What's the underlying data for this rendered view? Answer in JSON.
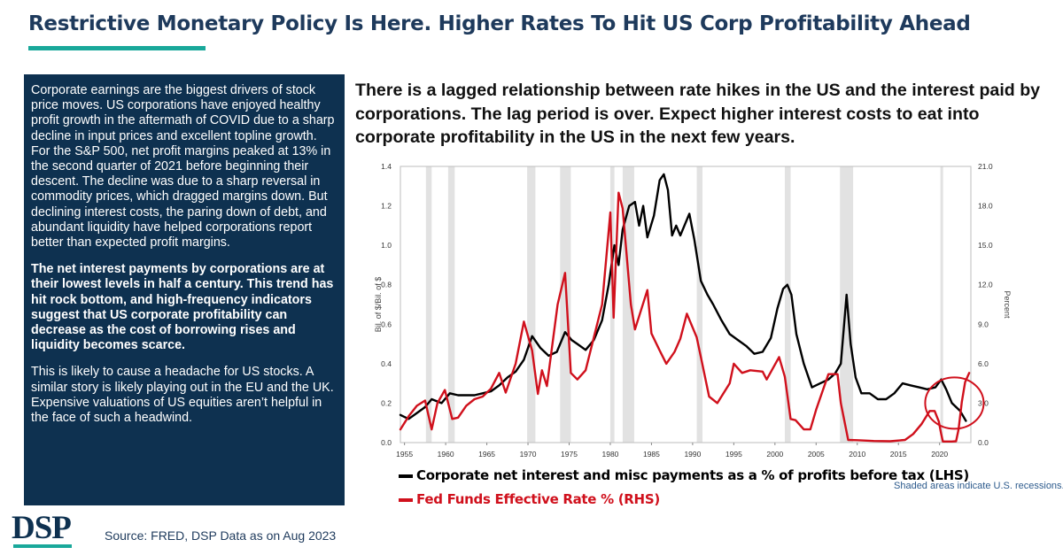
{
  "slide": {
    "title": "Restrictive Monetary Policy Is Here. Higher Rates To Hit US Corp Profitability Ahead",
    "commentary": [
      {
        "text": "Corporate earnings are the biggest drivers of stock price moves. US corporations have enjoyed healthy profit growth in the aftermath of COVID due to a sharp decline in input prices and excellent topline growth. For the S&P 500, net profit margins peaked at 13% in the second quarter of 2021 before beginning their descent. The decline was due to a sharp reversal in commodity prices, which dragged margins down. But declining interest costs, the paring down of debt, and abundant liquidity have helped corporations report better than expected profit margins.",
        "bold": false
      },
      {
        "text": "The net interest payments by corporations are at their lowest levels in half a century. This trend has hit rock bottom, and high-frequency indicators suggest that US corporate profitability can decrease as the cost of borrowing rises and liquidity becomes scarce.",
        "bold": true
      },
      {
        "text": "This is likely to cause a headache for US stocks. A similar story is likely playing out in the EU and the UK. Expensive valuations of US equities aren’t helpful in the face of such a headwind.",
        "bold": false
      }
    ],
    "headline": "There is a lagged relationship between rate hikes in the US and the interest paid by corporations. The lag period is over. Expect higher interest costs to eat into corporate profitability in the US in the next few years.",
    "logo": "DSP",
    "source": "Source: FRED, DSP Data as on Aug 2023",
    "accent_color": "#19a89a",
    "navy_color": "#0e3150"
  },
  "chart_data": {
    "type": "line",
    "xlim": [
      1954.5,
      2023.8
    ],
    "x_ticks": [
      "1955",
      "1960",
      "1965",
      "1970",
      "1975",
      "1980",
      "1985",
      "1990",
      "1995",
      "2000",
      "2005",
      "2010",
      "2015",
      "2020"
    ],
    "left_axis": {
      "label": "Bil. of $/Bil. of $",
      "range": [
        0,
        1.4
      ],
      "ticks": [
        "0.0",
        "0.2",
        "0.4",
        "0.6",
        "0.8",
        "1.0",
        "1.2",
        "1.4"
      ]
    },
    "right_axis": {
      "label": "Percent",
      "range": [
        0,
        21
      ],
      "ticks": [
        "0.0",
        "3.0",
        "6.0",
        "9.0",
        "12.0",
        "15.0",
        "18.0",
        "21.0"
      ]
    },
    "recessions": [
      [
        1957.6,
        1958.3
      ],
      [
        1960.3,
        1961.1
      ],
      [
        1969.9,
        1970.9
      ],
      [
        1973.9,
        1975.2
      ],
      [
        1980.0,
        1980.5
      ],
      [
        1981.5,
        1982.9
      ],
      [
        1990.5,
        1991.2
      ],
      [
        2001.2,
        2001.9
      ],
      [
        2007.9,
        2009.5
      ],
      [
        2020.1,
        2020.4
      ]
    ],
    "recession_note": "Shaded areas indicate U.S. recessions.",
    "highlight_circle": {
      "center": [
        2021.8,
        3.0
      ],
      "color": "#d0101c"
    },
    "series": [
      {
        "name": "Corporate net interest and misc payments as a % of  profits before tax (LHS)",
        "axis": "left",
        "color": "#000000",
        "points": [
          [
            1954.5,
            0.14
          ],
          [
            1955.5,
            0.12
          ],
          [
            1956.5,
            0.15
          ],
          [
            1957.5,
            0.18
          ],
          [
            1958.3,
            0.22
          ],
          [
            1959.5,
            0.2
          ],
          [
            1960.5,
            0.25
          ],
          [
            1961.5,
            0.24
          ],
          [
            1962.5,
            0.24
          ],
          [
            1963.5,
            0.24
          ],
          [
            1964.5,
            0.25
          ],
          [
            1965.5,
            0.26
          ],
          [
            1966.5,
            0.29
          ],
          [
            1967.5,
            0.33
          ],
          [
            1968.5,
            0.36
          ],
          [
            1969.5,
            0.42
          ],
          [
            1970.5,
            0.54
          ],
          [
            1971.5,
            0.48
          ],
          [
            1972.5,
            0.44
          ],
          [
            1973.5,
            0.46
          ],
          [
            1974.5,
            0.56
          ],
          [
            1975.3,
            0.52
          ],
          [
            1976.0,
            0.5
          ],
          [
            1977.0,
            0.47
          ],
          [
            1978.0,
            0.52
          ],
          [
            1979.0,
            0.62
          ],
          [
            1979.8,
            0.8
          ],
          [
            1980.5,
            1.0
          ],
          [
            1981.0,
            0.9
          ],
          [
            1981.5,
            1.08
          ],
          [
            1982.3,
            1.2
          ],
          [
            1983.0,
            1.22
          ],
          [
            1983.5,
            1.1
          ],
          [
            1984.0,
            1.2
          ],
          [
            1984.5,
            1.04
          ],
          [
            1985.3,
            1.15
          ],
          [
            1986.0,
            1.33
          ],
          [
            1986.5,
            1.36
          ],
          [
            1987.0,
            1.28
          ],
          [
            1987.5,
            1.05
          ],
          [
            1988.0,
            1.1
          ],
          [
            1988.5,
            1.05
          ],
          [
            1989.0,
            1.1
          ],
          [
            1989.6,
            1.16
          ],
          [
            1990.2,
            1.03
          ],
          [
            1991.0,
            0.82
          ],
          [
            1991.8,
            0.75
          ],
          [
            1992.5,
            0.7
          ],
          [
            1993.5,
            0.62
          ],
          [
            1994.5,
            0.55
          ],
          [
            1995.5,
            0.52
          ],
          [
            1996.5,
            0.49
          ],
          [
            1997.5,
            0.45
          ],
          [
            1998.5,
            0.46
          ],
          [
            1999.5,
            0.53
          ],
          [
            2000.3,
            0.68
          ],
          [
            2001.0,
            0.78
          ],
          [
            2001.5,
            0.8
          ],
          [
            2002.0,
            0.75
          ],
          [
            2002.6,
            0.55
          ],
          [
            2003.5,
            0.4
          ],
          [
            2004.5,
            0.28
          ],
          [
            2005.5,
            0.3
          ],
          [
            2006.5,
            0.32
          ],
          [
            2007.3,
            0.35
          ],
          [
            2008.0,
            0.4
          ],
          [
            2008.7,
            0.75
          ],
          [
            2009.2,
            0.5
          ],
          [
            2009.8,
            0.33
          ],
          [
            2010.5,
            0.25
          ],
          [
            2011.5,
            0.25
          ],
          [
            2012.5,
            0.22
          ],
          [
            2013.5,
            0.22
          ],
          [
            2014.5,
            0.25
          ],
          [
            2015.5,
            0.3
          ],
          [
            2016.5,
            0.29
          ],
          [
            2017.5,
            0.28
          ],
          [
            2018.5,
            0.27
          ],
          [
            2019.5,
            0.28
          ],
          [
            2020.2,
            0.32
          ],
          [
            2020.8,
            0.27
          ],
          [
            2021.5,
            0.2
          ],
          [
            2022.5,
            0.16
          ],
          [
            2023.2,
            0.11
          ]
        ]
      },
      {
        "name": "Fed Funds Effective Rate % (RHS)",
        "axis": "right",
        "color": "#d0101c",
        "points": [
          [
            1954.5,
            1.0
          ],
          [
            1955.5,
            2.0
          ],
          [
            1956.5,
            2.8
          ],
          [
            1957.5,
            3.2
          ],
          [
            1958.3,
            1.0
          ],
          [
            1959.0,
            3.0
          ],
          [
            1959.9,
            4.0
          ],
          [
            1960.8,
            1.8
          ],
          [
            1961.5,
            1.9
          ],
          [
            1962.5,
            2.8
          ],
          [
            1963.5,
            3.3
          ],
          [
            1964.5,
            3.5
          ],
          [
            1965.5,
            4.1
          ],
          [
            1966.5,
            5.3
          ],
          [
            1967.3,
            3.8
          ],
          [
            1968.5,
            6.0
          ],
          [
            1969.5,
            9.2
          ],
          [
            1970.5,
            7.0
          ],
          [
            1971.2,
            3.7
          ],
          [
            1971.7,
            5.5
          ],
          [
            1972.3,
            4.3
          ],
          [
            1973.6,
            10.5
          ],
          [
            1974.5,
            12.9
          ],
          [
            1975.2,
            5.3
          ],
          [
            1976.0,
            4.8
          ],
          [
            1977.0,
            5.5
          ],
          [
            1978.0,
            8.0
          ],
          [
            1979.0,
            10.5
          ],
          [
            1980.0,
            17.5
          ],
          [
            1980.4,
            9.5
          ],
          [
            1981.0,
            19.0
          ],
          [
            1981.5,
            17.8
          ],
          [
            1982.5,
            10.5
          ],
          [
            1983.0,
            8.6
          ],
          [
            1984.5,
            11.6
          ],
          [
            1985.0,
            8.3
          ],
          [
            1986.0,
            7.0
          ],
          [
            1986.8,
            6.0
          ],
          [
            1987.8,
            6.9
          ],
          [
            1988.5,
            7.9
          ],
          [
            1989.3,
            9.8
          ],
          [
            1990.5,
            8.0
          ],
          [
            1991.0,
            6.5
          ],
          [
            1992.0,
            3.5
          ],
          [
            1993.0,
            3.0
          ],
          [
            1994.5,
            4.5
          ],
          [
            1995.0,
            6.0
          ],
          [
            1996.0,
            5.3
          ],
          [
            1997.0,
            5.5
          ],
          [
            1998.5,
            5.4
          ],
          [
            1999.0,
            4.8
          ],
          [
            2000.5,
            6.5
          ],
          [
            2001.2,
            5.0
          ],
          [
            2001.9,
            1.8
          ],
          [
            2002.5,
            1.7
          ],
          [
            2003.5,
            1.0
          ],
          [
            2004.3,
            1.0
          ],
          [
            2005.0,
            2.5
          ],
          [
            2006.5,
            5.2
          ],
          [
            2007.6,
            5.2
          ],
          [
            2008.0,
            3.0
          ],
          [
            2008.9,
            0.2
          ],
          [
            2010.0,
            0.18
          ],
          [
            2012.0,
            0.12
          ],
          [
            2014.0,
            0.1
          ],
          [
            2015.8,
            0.2
          ],
          [
            2016.8,
            0.65
          ],
          [
            2017.8,
            1.4
          ],
          [
            2018.8,
            2.4
          ],
          [
            2019.4,
            2.4
          ],
          [
            2019.9,
            1.6
          ],
          [
            2020.2,
            0.65
          ],
          [
            2020.4,
            0.08
          ],
          [
            2021.5,
            0.08
          ],
          [
            2022.0,
            0.1
          ],
          [
            2022.3,
            1.0
          ],
          [
            2022.7,
            3.1
          ],
          [
            2023.1,
            4.6
          ],
          [
            2023.6,
            5.3
          ]
        ]
      }
    ]
  }
}
